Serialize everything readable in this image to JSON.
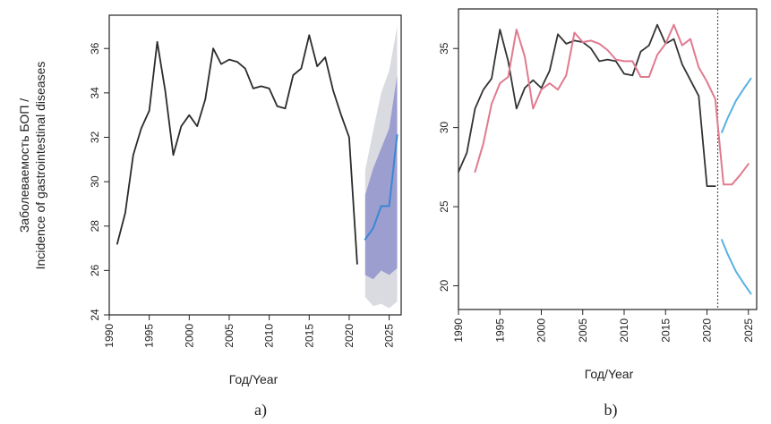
{
  "ylabel_line1": "Заболеваемость БОП /",
  "ylabel_line2": "Incidence of gastrointestinal diseases",
  "chart_data": [
    {
      "type": "line",
      "panel_label": "a)",
      "xlabel": "Год/Year",
      "xlim": [
        1990,
        2026.5
      ],
      "ylim": [
        24,
        37.5
      ],
      "x_ticks": [
        1990,
        1995,
        2000,
        2005,
        2010,
        2015,
        2020,
        2025
      ],
      "y_ticks": [
        24,
        26,
        28,
        30,
        32,
        34,
        36
      ],
      "series": [
        {
          "role": "observed",
          "color": "#2b2b2b",
          "x": [
            1991,
            1992,
            1993,
            1994,
            1995,
            1996,
            1997,
            1998,
            1999,
            2000,
            2001,
            2002,
            2003,
            2004,
            2005,
            2006,
            2007,
            2008,
            2009,
            2010,
            2011,
            2012,
            2013,
            2014,
            2015,
            2016,
            2017,
            2018,
            2019,
            2020,
            2021
          ],
          "y": [
            27.2,
            28.6,
            31.2,
            32.4,
            33.2,
            36.3,
            34.1,
            31.2,
            32.5,
            33.0,
            32.5,
            33.7,
            36.0,
            35.3,
            35.5,
            35.4,
            35.1,
            34.2,
            34.3,
            34.2,
            33.4,
            33.3,
            34.8,
            35.1,
            36.6,
            35.2,
            35.6,
            34.1,
            33.0,
            32.0,
            26.3
          ]
        },
        {
          "role": "forecast",
          "color": "#3b87d6",
          "x": [
            2022,
            2023,
            2024,
            2025,
            2026
          ],
          "y": [
            27.4,
            27.9,
            28.9,
            28.9,
            32.1
          ]
        }
      ],
      "bands": [
        {
          "role": "95% interval",
          "color": "#d3d5dc",
          "x": [
            2022,
            2023,
            2024,
            2025,
            2026
          ],
          "lower": [
            24.8,
            24.4,
            24.5,
            24.3,
            24.6
          ],
          "upper": [
            30.5,
            32.3,
            34.0,
            35.0,
            37.0
          ]
        },
        {
          "role": "80% interval",
          "color": "#8b8fcb",
          "x": [
            2022,
            2023,
            2024,
            2025,
            2026
          ],
          "lower": [
            25.8,
            25.6,
            26.0,
            25.8,
            26.1
          ],
          "upper": [
            29.4,
            30.6,
            31.5,
            32.4,
            34.8
          ]
        }
      ]
    },
    {
      "type": "line",
      "panel_label": "b)",
      "xlabel": "Год/Year",
      "xlim": [
        1990,
        2026
      ],
      "ylim": [
        18.5,
        37.5
      ],
      "x_ticks": [
        1990,
        1995,
        2000,
        2005,
        2010,
        2015,
        2020,
        2025
      ],
      "y_ticks": [
        20,
        25,
        30,
        35
      ],
      "vline_x": 2021.3,
      "series": [
        {
          "role": "observed",
          "color": "#333333",
          "x": [
            1990,
            1991,
            1992,
            1993,
            1994,
            1995,
            1996,
            1997,
            1998,
            1999,
            2000,
            2001,
            2002,
            2003,
            2004,
            2005,
            2006,
            2007,
            2008,
            2009,
            2010,
            2011,
            2012,
            2013,
            2014,
            2015,
            2016,
            2017,
            2018,
            2019,
            2020,
            2021
          ],
          "y": [
            27.2,
            28.4,
            31.2,
            32.4,
            33.1,
            36.2,
            34.2,
            31.2,
            32.5,
            33.0,
            32.5,
            33.6,
            35.9,
            35.3,
            35.5,
            35.4,
            35.0,
            34.2,
            34.3,
            34.2,
            33.4,
            33.3,
            34.8,
            35.2,
            36.5,
            35.3,
            35.6,
            34.0,
            33.0,
            32.0,
            26.3,
            26.3
          ]
        },
        {
          "role": "fitted",
          "color": "#e07a8f",
          "x": [
            1992,
            1993,
            1994,
            1995,
            1996,
            1997,
            1998,
            1999,
            2000,
            2001,
            2002,
            2003,
            2004,
            2005,
            2006,
            2007,
            2008,
            2009,
            2010,
            2011,
            2012,
            2013,
            2014,
            2015,
            2016,
            2017,
            2018,
            2019,
            2020,
            2021,
            2022,
            2023,
            2024,
            2025
          ],
          "y": [
            27.2,
            29.0,
            31.5,
            32.8,
            33.2,
            36.2,
            34.5,
            31.2,
            32.4,
            32.8,
            32.4,
            33.3,
            36.0,
            35.4,
            35.5,
            35.3,
            34.9,
            34.3,
            34.2,
            34.2,
            33.2,
            33.2,
            34.6,
            35.3,
            36.5,
            35.2,
            35.6,
            33.8,
            32.9,
            31.8,
            26.4,
            26.4,
            27.0,
            27.7
          ]
        },
        {
          "role": "upper bound",
          "color": "#5ab0e2",
          "x": [
            2021.8,
            2022.5,
            2023.5,
            2024.5,
            2025.3
          ],
          "y": [
            29.7,
            30.6,
            31.7,
            32.5,
            33.1
          ]
        },
        {
          "role": "lower bound",
          "color": "#5ab0e2",
          "x": [
            2021.8,
            2022.5,
            2023.5,
            2024.5,
            2025.3
          ],
          "y": [
            22.9,
            22.0,
            20.9,
            20.1,
            19.5
          ]
        }
      ]
    }
  ]
}
